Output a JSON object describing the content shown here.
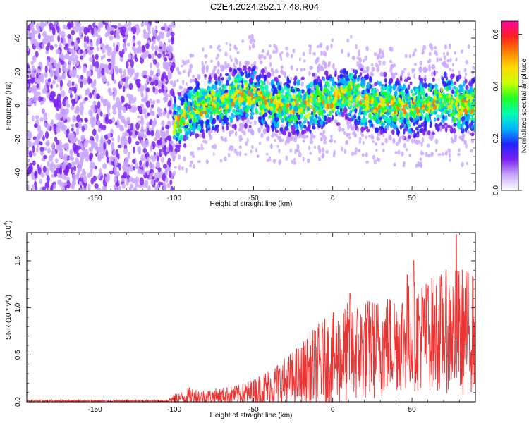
{
  "title": "C2E4.2024.252.17.48.R04",
  "chart_data": [
    {
      "type": "heatmap",
      "xlabel": "Height of straight line (km)",
      "ylabel": "Frequency (Hz)",
      "xlim": [
        -193,
        90
      ],
      "ylim": [
        -50,
        50
      ],
      "xticks": [
        -150,
        -100,
        -50,
        0,
        50
      ],
      "yticks": [
        -40,
        -20,
        0,
        20,
        40
      ],
      "colorbar": {
        "label": "Normalized spectral amplitude",
        "range": [
          0.0,
          0.65
        ],
        "ticks": [
          "0.0",
          "0.2",
          "0.4",
          "0.6"
        ],
        "colors": [
          "#ffffff",
          "#c9a6ff",
          "#7b22f0",
          "#2222ff",
          "#00b4ff",
          "#00ffb4",
          "#22ff22",
          "#c8ff00",
          "#ffd800",
          "#ff8000",
          "#ff2020",
          "#ff00a0"
        ]
      },
      "noise_band": {
        "x": [
          -193,
          -100
        ],
        "amplitude": 0.1
      },
      "signal_band": {
        "x": [
          -100,
          90
        ],
        "center_freq_hz": [
          [
            -100,
            -10
          ],
          [
            -90,
            -4
          ],
          [
            -80,
            0
          ],
          [
            -70,
            2
          ],
          [
            -60,
            6
          ],
          [
            -50,
            6
          ],
          [
            -40,
            2
          ],
          [
            -30,
            0
          ],
          [
            -20,
            0
          ],
          [
            -10,
            2
          ],
          [
            0,
            4
          ],
          [
            10,
            8
          ],
          [
            20,
            2
          ],
          [
            30,
            0
          ],
          [
            40,
            0
          ],
          [
            50,
            -2
          ],
          [
            60,
            0
          ],
          [
            70,
            4
          ],
          [
            80,
            0
          ],
          [
            90,
            0
          ]
        ],
        "peak_amplitude": 0.55
      }
    },
    {
      "type": "area",
      "xlabel": "Height of straight line (km)",
      "ylabel": "SNR (10 * v/v)",
      "scale_label": "(x10^4)",
      "scale_base": "(x10",
      "scale_exp": "4",
      "xlim": [
        -193,
        90
      ],
      "ylim": [
        0,
        1.8
      ],
      "xticks": [
        -150,
        -100,
        -50,
        0,
        50
      ],
      "yticks": [
        "0.0",
        "0.5",
        "1.0",
        "1.5"
      ],
      "color": "#ee3333",
      "envelope": {
        "x": [
          -193,
          -105,
          -100,
          -90,
          -80,
          -60,
          -50,
          -40,
          -30,
          -20,
          -10,
          0,
          10,
          20,
          30,
          40,
          50,
          60,
          70,
          80,
          90
        ],
        "mean": [
          0.01,
          0.01,
          0.03,
          0.06,
          0.05,
          0.08,
          0.1,
          0.15,
          0.2,
          0.28,
          0.38,
          0.45,
          0.52,
          0.55,
          0.58,
          0.65,
          0.7,
          0.72,
          0.75,
          0.75,
          0.75
        ],
        "spread": [
          0.01,
          0.01,
          0.05,
          0.1,
          0.08,
          0.1,
          0.15,
          0.22,
          0.28,
          0.35,
          0.45,
          0.5,
          0.55,
          0.55,
          0.55,
          0.55,
          0.6,
          0.6,
          0.65,
          0.7,
          0.65
        ]
      },
      "peaks": [
        {
          "x": 11,
          "y": 1.15
        },
        {
          "x": 25,
          "y": 1.05
        },
        {
          "x": 47,
          "y": 1.35
        },
        {
          "x": 51,
          "y": 1.5
        },
        {
          "x": 60,
          "y": 1.2
        },
        {
          "x": 78,
          "y": 1.78
        }
      ]
    }
  ]
}
